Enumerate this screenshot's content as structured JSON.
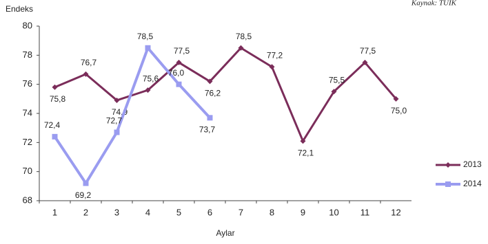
{
  "chart_data": {
    "type": "line",
    "y_axis_title": "Endeks",
    "x_axis_title": "Aylar",
    "source": "Kaynak: TÜİK",
    "categories": [
      "1",
      "2",
      "3",
      "4",
      "5",
      "6",
      "7",
      "8",
      "9",
      "10",
      "11",
      "12"
    ],
    "series": [
      {
        "name": "2013",
        "color": "#7b2d5a",
        "marker": "diamond",
        "values": [
          75.8,
          76.7,
          74.9,
          75.6,
          77.5,
          76.2,
          78.5,
          77.2,
          72.1,
          75.5,
          77.5,
          75.0
        ],
        "value_labels": [
          "75,8",
          "76,7",
          "74,9",
          "75,6",
          "77,5",
          "76,2",
          "78,5",
          "77,2",
          "72,1",
          "75,5",
          "77,5",
          "75,0"
        ]
      },
      {
        "name": "2014",
        "color": "#9a9cf0",
        "marker": "square",
        "values": [
          72.4,
          69.2,
          72.7,
          78.5,
          76.0,
          73.7,
          null,
          null,
          null,
          null,
          null,
          null
        ],
        "value_labels": [
          "72,4",
          "69,2",
          "72,7",
          "78,5",
          "76,0",
          "73,7",
          null,
          null,
          null,
          null,
          null,
          null
        ]
      }
    ],
    "ylim": [
      68,
      80
    ],
    "yticks": [
      68,
      70,
      72,
      74,
      76,
      78,
      80
    ],
    "grid": false,
    "legend": "right"
  }
}
